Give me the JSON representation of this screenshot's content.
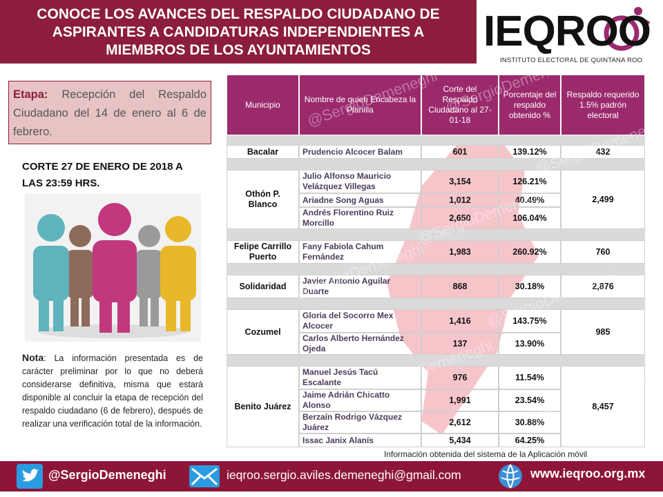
{
  "header": {
    "title_lines": [
      "CONOCE LOS AVANCES DEL RESPALDO CIUDADANO DE",
      "ASPIRANTES  A CANDIDATURAS INDEPENDIENTES A",
      "MIEMBROS DE LOS AYUNTAMIENTOS"
    ]
  },
  "logo": {
    "name": "IEQROO",
    "subtitle": "INSTITUTO ELECTORAL DE QUINTANA ROO"
  },
  "watermark": "@SergioDemeneghi",
  "etapa": {
    "label": "Etapa:",
    "text": " Recepción del Respaldo Ciudadano del 14 de enero al 6 de febrero."
  },
  "corte": "CORTE 27 DE ENERO DE 2018 A LAS 23:59 HRS.",
  "nota": {
    "label": "Nota",
    "text": ": La información presentada es de carácter preliminar por lo que no deberá considerarse definitiva, misma que estará disponible al concluir la etapa de recepción del respaldo ciudadano (6 de febrero), después de realizar una verificación total de la información."
  },
  "table": {
    "columns": [
      "Municipio",
      "Nombre de quien Encabeza la Planilla",
      "Corte del Respaldo Ciudadano al 27-01-18",
      "Porcentaje del respaldo obtenido %",
      "Respaldo requerido 1.5% padrón electoral"
    ],
    "groups": [
      {
        "municipio": "Bacalar",
        "requerido": "432",
        "rows": [
          {
            "nombre": "Prudencio Alcocer Balam",
            "corte": "601",
            "porcentaje": "139.12%"
          }
        ]
      },
      {
        "municipio": "Othón P. Blanco",
        "requerido": "2,499",
        "rows": [
          {
            "nombre": "Julio Alfonso Mauricio Velázquez Villegas",
            "corte": "3,154",
            "porcentaje": "126.21%"
          },
          {
            "nombre": "Ariadne Song Aguas",
            "corte": "1,012",
            "porcentaje": "40.49%"
          },
          {
            "nombre": "Andrés Florentino Ruiz Morcillo",
            "corte": "2,650",
            "porcentaje": "106.04%"
          }
        ]
      },
      {
        "municipio": "Felipe Carrillo Puerto",
        "requerido": "760",
        "rows": [
          {
            "nombre": "Fany Fabiola Cahum Fernández",
            "corte": "1,983",
            "porcentaje": "260.92%"
          }
        ]
      },
      {
        "municipio": "Solidaridad",
        "requerido": "2,876",
        "rows": [
          {
            "nombre": "Javier Antonio Aguilar Duarte",
            "corte": "868",
            "porcentaje": "30.18%"
          }
        ]
      },
      {
        "municipio": "Cozumel",
        "requerido": "985",
        "rows": [
          {
            "nombre": "Gloria del Socorro Mex Alcocer",
            "corte": "1,416",
            "porcentaje": "143.75%"
          },
          {
            "nombre": "Carlos Alberto Hernández Ojeda",
            "corte": "137",
            "porcentaje": "13.90%"
          }
        ]
      },
      {
        "municipio": "Benito Juárez",
        "requerido": "8,457",
        "rows": [
          {
            "nombre": "Manuel Jesús Tacú Escalante",
            "corte": "976",
            "porcentaje": "11.54%"
          },
          {
            "nombre": "Jaime Adrián Chicatto Alonso",
            "corte": "1,991",
            "porcentaje": "23.54%"
          },
          {
            "nombre": "Berzaín Rodrigo Vázquez Juárez",
            "corte": "2,612",
            "porcentaje": "30.88%"
          },
          {
            "nombre": "Issac  Janix Alanís",
            "corte": "5,434",
            "porcentaje": "64.25%"
          }
        ]
      }
    ]
  },
  "source": "Información obtenida del sistema de la Aplicación móvil",
  "footer": {
    "twitter": "@SergioDemeneghi",
    "email": "ieqroo.sergio.aviles.demeneghi@gmail.com",
    "website": "www.ieqroo.org.mx"
  }
}
